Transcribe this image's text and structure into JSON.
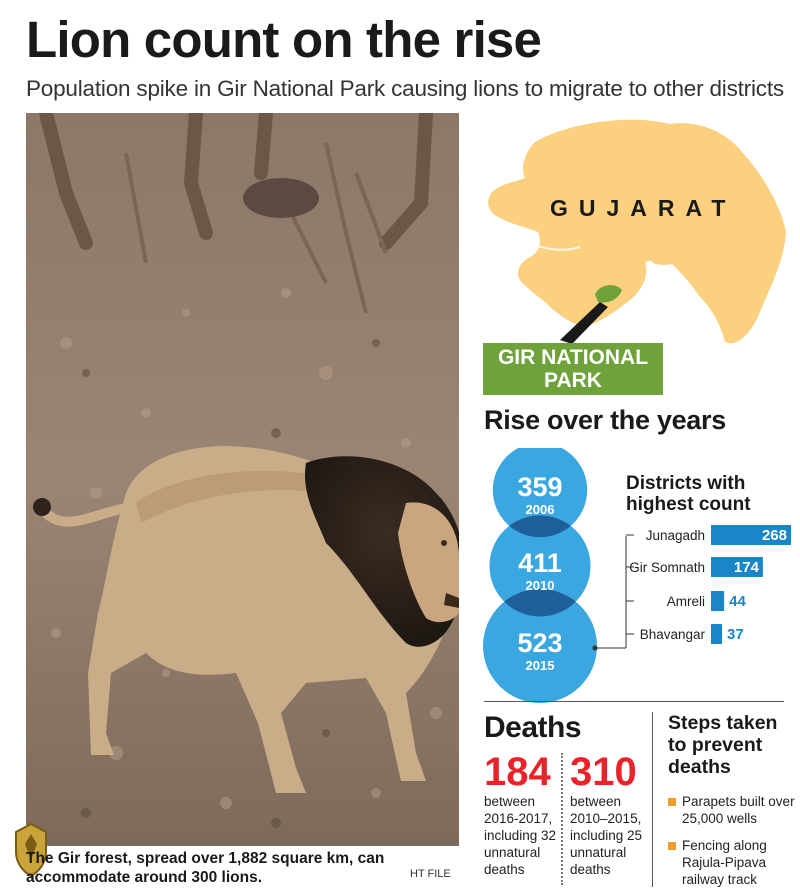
{
  "header": {
    "title": "Lion count on the rise",
    "subtitle": "Population spike in Gir National Park causing lions to migrate to other districts"
  },
  "photo": {
    "caption": "The Gir forest, spread over 1,882 square km, can accommodate around 300 lions.",
    "credit": "HT FILE"
  },
  "map": {
    "state_label": "GUJARAT",
    "park_label": "GIR NATIONAL PARK",
    "state_color": "#fbd07e",
    "park_color": "#6fa23a"
  },
  "rise": {
    "title": "Rise over the years",
    "circle_color": "#3ba7e0",
    "overlap_color": "#1f5f9a"
  },
  "chart_data": [
    {
      "type": "bubble",
      "title": "Rise over the years",
      "categories": [
        "2006",
        "2010",
        "2015"
      ],
      "values": [
        359,
        411,
        523
      ]
    },
    {
      "type": "bar",
      "title": "Districts with highest count",
      "categories": [
        "Junagadh",
        "Gir Somnath",
        "Amreli",
        "Bhavangar"
      ],
      "values": [
        268,
        174,
        44,
        37
      ],
      "bar_color": "#1a86c8"
    }
  ],
  "deaths": {
    "title": "Deaths",
    "items": [
      {
        "number": "184",
        "text": "between 2016-2017, including 32 unnatural deaths"
      },
      {
        "number": "310",
        "text": "between 2010–2015, including 25 unnatural deaths"
      }
    ]
  },
  "steps": {
    "title": "Steps taken to prevent deaths",
    "items": [
      "Parapets built over 25,000 wells",
      "Fencing along Rajula-Pipava railway track"
    ],
    "bullet_color": "#f39c2b"
  }
}
